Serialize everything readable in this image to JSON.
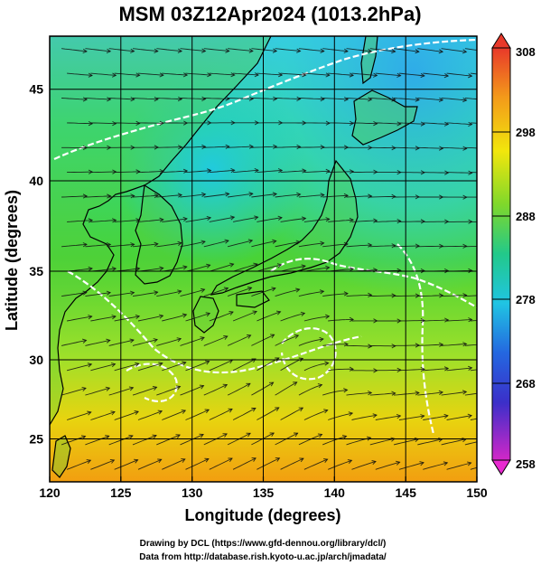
{
  "title": "MSM 03Z12Apr2024 (1013.2hPa)",
  "xlabel": "Longitude (degrees)",
  "ylabel": "Latitude  (degrees)",
  "x_ticks": [
    "120",
    "125",
    "130",
    "135",
    "140",
    "145",
    "150"
  ],
  "y_ticks": [
    "25",
    "30",
    "35",
    "40",
    "45"
  ],
  "colorbar": {
    "min": 258,
    "max": 308,
    "labels": [
      "308",
      "298",
      "288",
      "278",
      "268",
      "258"
    ]
  },
  "credits": {
    "line1": "Drawing by DCL (https://www.gfd-dennou.org/library/dcl/)",
    "line2": "Data from http://database.rish.kyoto-u.ac.jp/arch/jmadata/"
  },
  "chart_data": {
    "type": "heatmap",
    "title": "MSM 03Z12Apr2024 (1013.2hPa)",
    "xlabel": "Longitude (degrees)",
    "ylabel": "Latitude  (degrees)",
    "xlim": [
      120,
      150
    ],
    "ylim": [
      22.4,
      47.6
    ],
    "color_range": [
      258,
      308
    ],
    "overlay": "streamlines"
  }
}
